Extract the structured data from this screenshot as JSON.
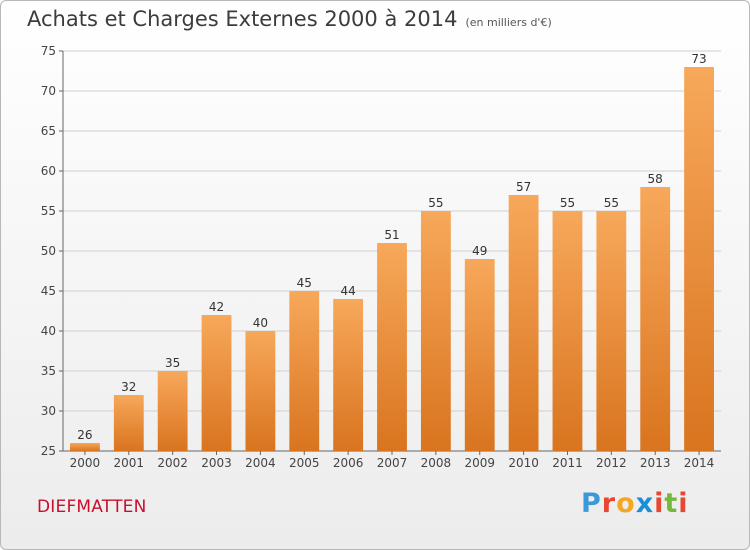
{
  "title": "Achats et Charges Externes 2000 à 2014",
  "unit": "(en milliers d'€)",
  "commune": "DIEFMATTEN",
  "logo": {
    "letters": [
      "P",
      "r",
      "o",
      "x",
      "i",
      "t",
      "i"
    ],
    "colors": [
      "#3a9ad9",
      "#e8462e",
      "#f5a623",
      "#1a8fd9",
      "#e8462e",
      "#74b83c",
      "#e8462e"
    ]
  },
  "colors": {
    "bar_top": "#f7a85a",
    "bar_bottom": "#d9741f",
    "gridline": "#d0d0d0",
    "axis": "#666666"
  },
  "chart_data": {
    "type": "bar",
    "title": "Achats et Charges Externes 2000 à 2014",
    "subtitle": "(en milliers d'€)",
    "categories": [
      "2000",
      "2001",
      "2002",
      "2003",
      "2004",
      "2005",
      "2006",
      "2007",
      "2008",
      "2009",
      "2010",
      "2011",
      "2012",
      "2013",
      "2014"
    ],
    "values": [
      26,
      32,
      35,
      42,
      40,
      45,
      44,
      51,
      55,
      49,
      57,
      55,
      55,
      58,
      73
    ],
    "ylim": [
      25,
      75
    ],
    "yticks": [
      25,
      30,
      35,
      40,
      45,
      50,
      55,
      60,
      65,
      70,
      75
    ],
    "grid": true,
    "xlabel": "",
    "ylabel": ""
  }
}
